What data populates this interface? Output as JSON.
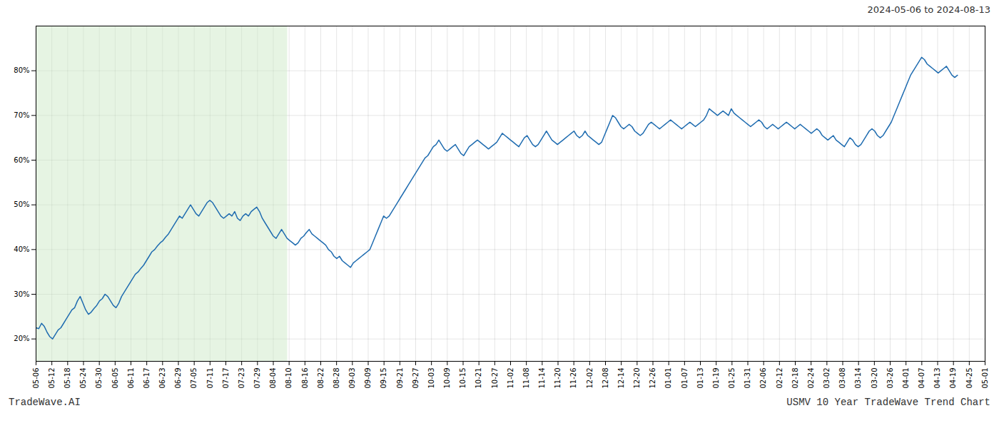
{
  "chart_data": {
    "type": "line",
    "title": "2024-05-06 to 2024-08-13",
    "annotations": [
      "TradeWave.AI",
      "USMV 10 Year TradeWave Trend Chart"
    ],
    "color": "#1f6cb0",
    "grid": true,
    "spans": [
      {
        "x": [
          0,
          91.16
        ],
        "color": "#c8e6c0"
      }
    ],
    "xlim": [
      0,
      344
    ],
    "xticks": [
      {
        "value": 0,
        "label": "05-06"
      },
      {
        "value": 5.7333,
        "label": "05-12"
      },
      {
        "value": 11.4667,
        "label": "05-18"
      },
      {
        "value": 17.2,
        "label": "05-24"
      },
      {
        "value": 22.9333,
        "label": "05-30"
      },
      {
        "value": 28.6667,
        "label": "06-05"
      },
      {
        "value": 34.4,
        "label": "06-11"
      },
      {
        "value": 40.1333,
        "label": "06-17"
      },
      {
        "value": 45.8667,
        "label": "06-23"
      },
      {
        "value": 51.6,
        "label": "06-29"
      },
      {
        "value": 57.3333,
        "label": "07-05"
      },
      {
        "value": 63.0667,
        "label": "07-11"
      },
      {
        "value": 68.8,
        "label": "07-17"
      },
      {
        "value": 74.5333,
        "label": "07-23"
      },
      {
        "value": 80.2667,
        "label": "07-29"
      },
      {
        "value": 86,
        "label": "08-04"
      },
      {
        "value": 91.7333,
        "label": "08-10"
      },
      {
        "value": 97.4667,
        "label": "08-16"
      },
      {
        "value": 103.2,
        "label": "08-22"
      },
      {
        "value": 108.9333,
        "label": "08-28"
      },
      {
        "value": 114.6667,
        "label": "09-03"
      },
      {
        "value": 120.4,
        "label": "09-09"
      },
      {
        "value": 126.1333,
        "label": "09-15"
      },
      {
        "value": 131.8667,
        "label": "09-21"
      },
      {
        "value": 137.6,
        "label": "09-27"
      },
      {
        "value": 143.3333,
        "label": "10-03"
      },
      {
        "value": 149.0667,
        "label": "10-09"
      },
      {
        "value": 154.8,
        "label": "10-15"
      },
      {
        "value": 160.5333,
        "label": "10-21"
      },
      {
        "value": 166.2667,
        "label": "10-27"
      },
      {
        "value": 172,
        "label": "11-02"
      },
      {
        "value": 177.7333,
        "label": "11-08"
      },
      {
        "value": 183.4667,
        "label": "11-14"
      },
      {
        "value": 189.2,
        "label": "11-20"
      },
      {
        "value": 194.9333,
        "label": "11-26"
      },
      {
        "value": 200.6667,
        "label": "12-02"
      },
      {
        "value": 206.4,
        "label": "12-08"
      },
      {
        "value": 212.1333,
        "label": "12-14"
      },
      {
        "value": 217.8667,
        "label": "12-20"
      },
      {
        "value": 223.6,
        "label": "12-26"
      },
      {
        "value": 229.3333,
        "label": "01-01"
      },
      {
        "value": 235.0667,
        "label": "01-07"
      },
      {
        "value": 240.8,
        "label": "01-13"
      },
      {
        "value": 246.5333,
        "label": "01-19"
      },
      {
        "value": 252.2667,
        "label": "01-25"
      },
      {
        "value": 258,
        "label": "01-31"
      },
      {
        "value": 263.7333,
        "label": "02-06"
      },
      {
        "value": 269.4667,
        "label": "02-12"
      },
      {
        "value": 275.2,
        "label": "02-18"
      },
      {
        "value": 280.9333,
        "label": "02-24"
      },
      {
        "value": 286.6667,
        "label": "03-02"
      },
      {
        "value": 292.4,
        "label": "03-08"
      },
      {
        "value": 298.1333,
        "label": "03-14"
      },
      {
        "value": 303.8667,
        "label": "03-20"
      },
      {
        "value": 309.6,
        "label": "03-26"
      },
      {
        "value": 315.3333,
        "label": "04-01"
      },
      {
        "value": 321.0667,
        "label": "04-07"
      },
      {
        "value": 326.8,
        "label": "04-13"
      },
      {
        "value": 332.5333,
        "label": "04-19"
      },
      {
        "value": 338.2667,
        "label": "04-25"
      },
      {
        "value": 344,
        "label": "05-01"
      }
    ],
    "ylim": [
      15,
      90
    ],
    "yticks": [
      {
        "value": 20,
        "label": "20%"
      },
      {
        "value": 30,
        "label": "30%"
      },
      {
        "value": 40,
        "label": "40%"
      },
      {
        "value": 50,
        "label": "50%"
      },
      {
        "value": 60,
        "label": "60%"
      },
      {
        "value": 70,
        "label": "70%"
      },
      {
        "value": 80,
        "label": "80%"
      }
    ],
    "values": [
      22.5,
      22.3,
      23.5,
      22.8,
      21.5,
      20.5,
      20.0,
      21.0,
      22.0,
      22.5,
      23.5,
      24.5,
      25.5,
      26.5,
      27.0,
      28.5,
      29.5,
      28.0,
      26.5,
      25.5,
      26.0,
      26.8,
      27.5,
      28.5,
      29.0,
      30.0,
      29.5,
      28.5,
      27.5,
      27.0,
      28.0,
      29.5,
      30.5,
      31.5,
      32.5,
      33.5,
      34.5,
      35.0,
      35.8,
      36.5,
      37.5,
      38.5,
      39.5,
      40.0,
      40.8,
      41.5,
      42.0,
      42.8,
      43.5,
      44.5,
      45.5,
      46.5,
      47.5,
      47.0,
      48.0,
      49.0,
      50.0,
      49.0,
      48.0,
      47.5,
      48.5,
      49.5,
      50.5,
      51.0,
      50.5,
      49.5,
      48.5,
      47.5,
      47.0,
      47.5,
      48.0,
      47.5,
      48.5,
      47.0,
      46.5,
      47.5,
      48.0,
      47.5,
      48.5,
      49.0,
      49.5,
      48.5,
      47.0,
      46.0,
      45.0,
      44.0,
      43.0,
      42.5,
      43.5,
      44.5,
      43.5,
      42.5,
      42.0,
      41.5,
      41.0,
      41.5,
      42.5,
      43.0,
      43.8,
      44.5,
      43.5,
      43.0,
      42.5,
      42.0,
      41.5,
      41.0,
      40.0,
      39.5,
      38.5,
      38.0,
      38.5,
      37.5,
      37.0,
      36.5,
      36.0,
      37.0,
      37.5,
      38.0,
      38.5,
      39.0,
      39.5,
      40.0,
      41.5,
      43.0,
      44.5,
      46.0,
      47.5,
      47.0,
      47.5,
      48.5,
      49.5,
      50.5,
      51.5,
      52.5,
      53.5,
      54.5,
      55.5,
      56.5,
      57.5,
      58.5,
      59.5,
      60.5,
      61.0,
      62.0,
      63.0,
      63.5,
      64.5,
      63.5,
      62.5,
      62.0,
      62.5,
      63.0,
      63.5,
      62.5,
      61.5,
      61.0,
      62.0,
      63.0,
      63.5,
      64.0,
      64.5,
      64.0,
      63.5,
      63.0,
      62.5,
      63.0,
      63.5,
      64.0,
      65.0,
      66.0,
      65.5,
      65.0,
      64.5,
      64.0,
      63.5,
      63.0,
      64.0,
      65.0,
      65.5,
      64.5,
      63.5,
      63.0,
      63.5,
      64.5,
      65.5,
      66.5,
      65.5,
      64.5,
      64.0,
      63.5,
      64.0,
      64.5,
      65.0,
      65.5,
      66.0,
      66.5,
      65.5,
      65.0,
      65.5,
      66.5,
      65.5,
      65.0,
      64.5,
      64.0,
      63.5,
      64.0,
      65.5,
      67.0,
      68.5,
      70.0,
      69.5,
      68.5,
      67.5,
      67.0,
      67.5,
      68.0,
      67.5,
      66.5,
      66.0,
      65.5,
      66.0,
      67.0,
      68.0,
      68.5,
      68.0,
      67.5,
      67.0,
      67.5,
      68.0,
      68.5,
      69.0,
      68.5,
      68.0,
      67.5,
      67.0,
      67.5,
      68.0,
      68.5,
      68.0,
      67.5,
      68.0,
      68.5,
      69.0,
      70.0,
      71.5,
      71.0,
      70.5,
      70.0,
      70.5,
      71.0,
      70.5,
      70.0,
      71.5,
      70.5,
      70.0,
      69.5,
      69.0,
      68.5,
      68.0,
      67.5,
      68.0,
      68.5,
      69.0,
      68.5,
      67.5,
      67.0,
      67.5,
      68.0,
      67.5,
      67.0,
      67.5,
      68.0,
      68.5,
      68.0,
      67.5,
      67.0,
      67.5,
      68.0,
      67.5,
      67.0,
      66.5,
      66.0,
      66.5,
      67.0,
      66.5,
      65.5,
      65.0,
      64.5,
      65.0,
      65.5,
      64.5,
      64.0,
      63.5,
      63.0,
      64.0,
      65.0,
      64.5,
      63.5,
      63.0,
      63.5,
      64.5,
      65.5,
      66.5,
      67.0,
      66.5,
      65.5,
      65.0,
      65.5,
      66.5,
      67.5,
      68.5,
      70.0,
      71.5,
      73.0,
      74.5,
      76.0,
      77.5,
      79.0,
      80.0,
      81.0,
      82.0,
      83.0,
      82.5,
      81.5,
      81.0,
      80.5,
      80.0,
      79.5,
      80.0,
      80.5,
      81.0,
      80.0,
      79.0,
      78.5,
      79.0
    ]
  }
}
